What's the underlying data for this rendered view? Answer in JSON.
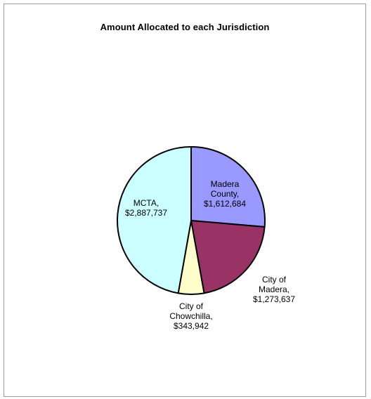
{
  "chart_data": {
    "type": "pie",
    "title": "Amount Allocated to each Jurisdiction",
    "slices": [
      {
        "name": "Madera County",
        "value": 1612684,
        "color": "#9999ff",
        "label_lines": [
          "Madera",
          "County,",
          "$1,612,684"
        ]
      },
      {
        "name": "City of Madera",
        "value": 1273637,
        "color": "#993366",
        "label_lines": [
          "City of",
          "Madera,",
          "$1,273,637"
        ]
      },
      {
        "name": "City of Chowchilla",
        "value": 343942,
        "color": "#ffffcc",
        "label_lines": [
          "City of",
          "Chowchilla,",
          "$343,942"
        ]
      },
      {
        "name": "MCTA",
        "value": 2887737,
        "color": "#ccffff",
        "label_lines": [
          "MCTA,",
          "$2,887,737"
        ]
      }
    ],
    "start_angle": "12 o'clock",
    "direction": "clockwise",
    "legend": "none"
  }
}
